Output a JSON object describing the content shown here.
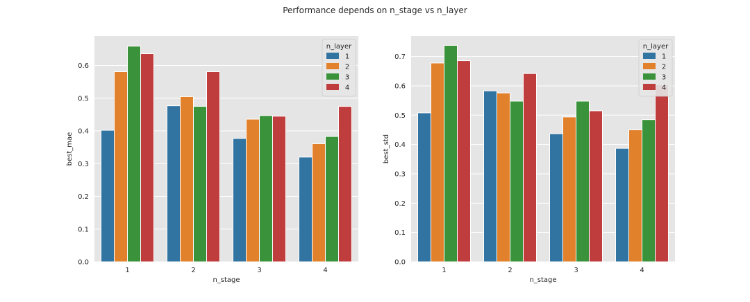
{
  "figure": {
    "suptitle": "Performance depends on n_stage vs n_layer"
  },
  "colors": {
    "panel_bg": "#e5e5e5",
    "grid": "#ffffff",
    "legend_bg": "#e5e5e5",
    "legend_edge": "#cccccc",
    "series": [
      "#3274a1",
      "#e1812c",
      "#3a923a",
      "#c03d3e"
    ]
  },
  "chart_data": [
    {
      "type": "bar",
      "title": "",
      "xlabel": "n_stage",
      "ylabel": "best_mae",
      "categories": [
        "1",
        "2",
        "3",
        "4"
      ],
      "ylim": [
        0,
        0.69
      ],
      "yticks": [
        0.0,
        0.1,
        0.2,
        0.3,
        0.4,
        0.5,
        0.6
      ],
      "ytick_labels": [
        "0.0",
        "0.1",
        "0.2",
        "0.3",
        "0.4",
        "0.5",
        "0.6"
      ],
      "grid": true,
      "legend": {
        "title": "n_layer",
        "placement": "top-right"
      },
      "series": [
        {
          "name": "1",
          "values": [
            0.402,
            0.477,
            0.377,
            0.32
          ]
        },
        {
          "name": "2",
          "values": [
            0.581,
            0.505,
            0.436,
            0.361
          ]
        },
        {
          "name": "3",
          "values": [
            0.659,
            0.475,
            0.447,
            0.383
          ]
        },
        {
          "name": "4",
          "values": [
            0.636,
            0.581,
            0.445,
            0.475
          ]
        }
      ]
    },
    {
      "type": "bar",
      "title": "",
      "xlabel": "n_stage",
      "ylabel": "best_std",
      "categories": [
        "1",
        "2",
        "3",
        "4"
      ],
      "ylim": [
        0,
        0.77
      ],
      "yticks": [
        0.0,
        0.1,
        0.2,
        0.3,
        0.4,
        0.5,
        0.6,
        0.7
      ],
      "ytick_labels": [
        "0.0",
        "0.1",
        "0.2",
        "0.3",
        "0.4",
        "0.5",
        "0.6",
        "0.7"
      ],
      "grid": true,
      "legend": {
        "title": "n_layer",
        "placement": "top-right"
      },
      "series": [
        {
          "name": "1",
          "values": [
            0.508,
            0.583,
            0.437,
            0.387
          ]
        },
        {
          "name": "2",
          "values": [
            0.678,
            0.576,
            0.494,
            0.45
          ]
        },
        {
          "name": "3",
          "values": [
            0.738,
            0.548,
            0.548,
            0.485
          ]
        },
        {
          "name": "4",
          "values": [
            0.686,
            0.642,
            0.515,
            0.604
          ]
        }
      ]
    }
  ]
}
